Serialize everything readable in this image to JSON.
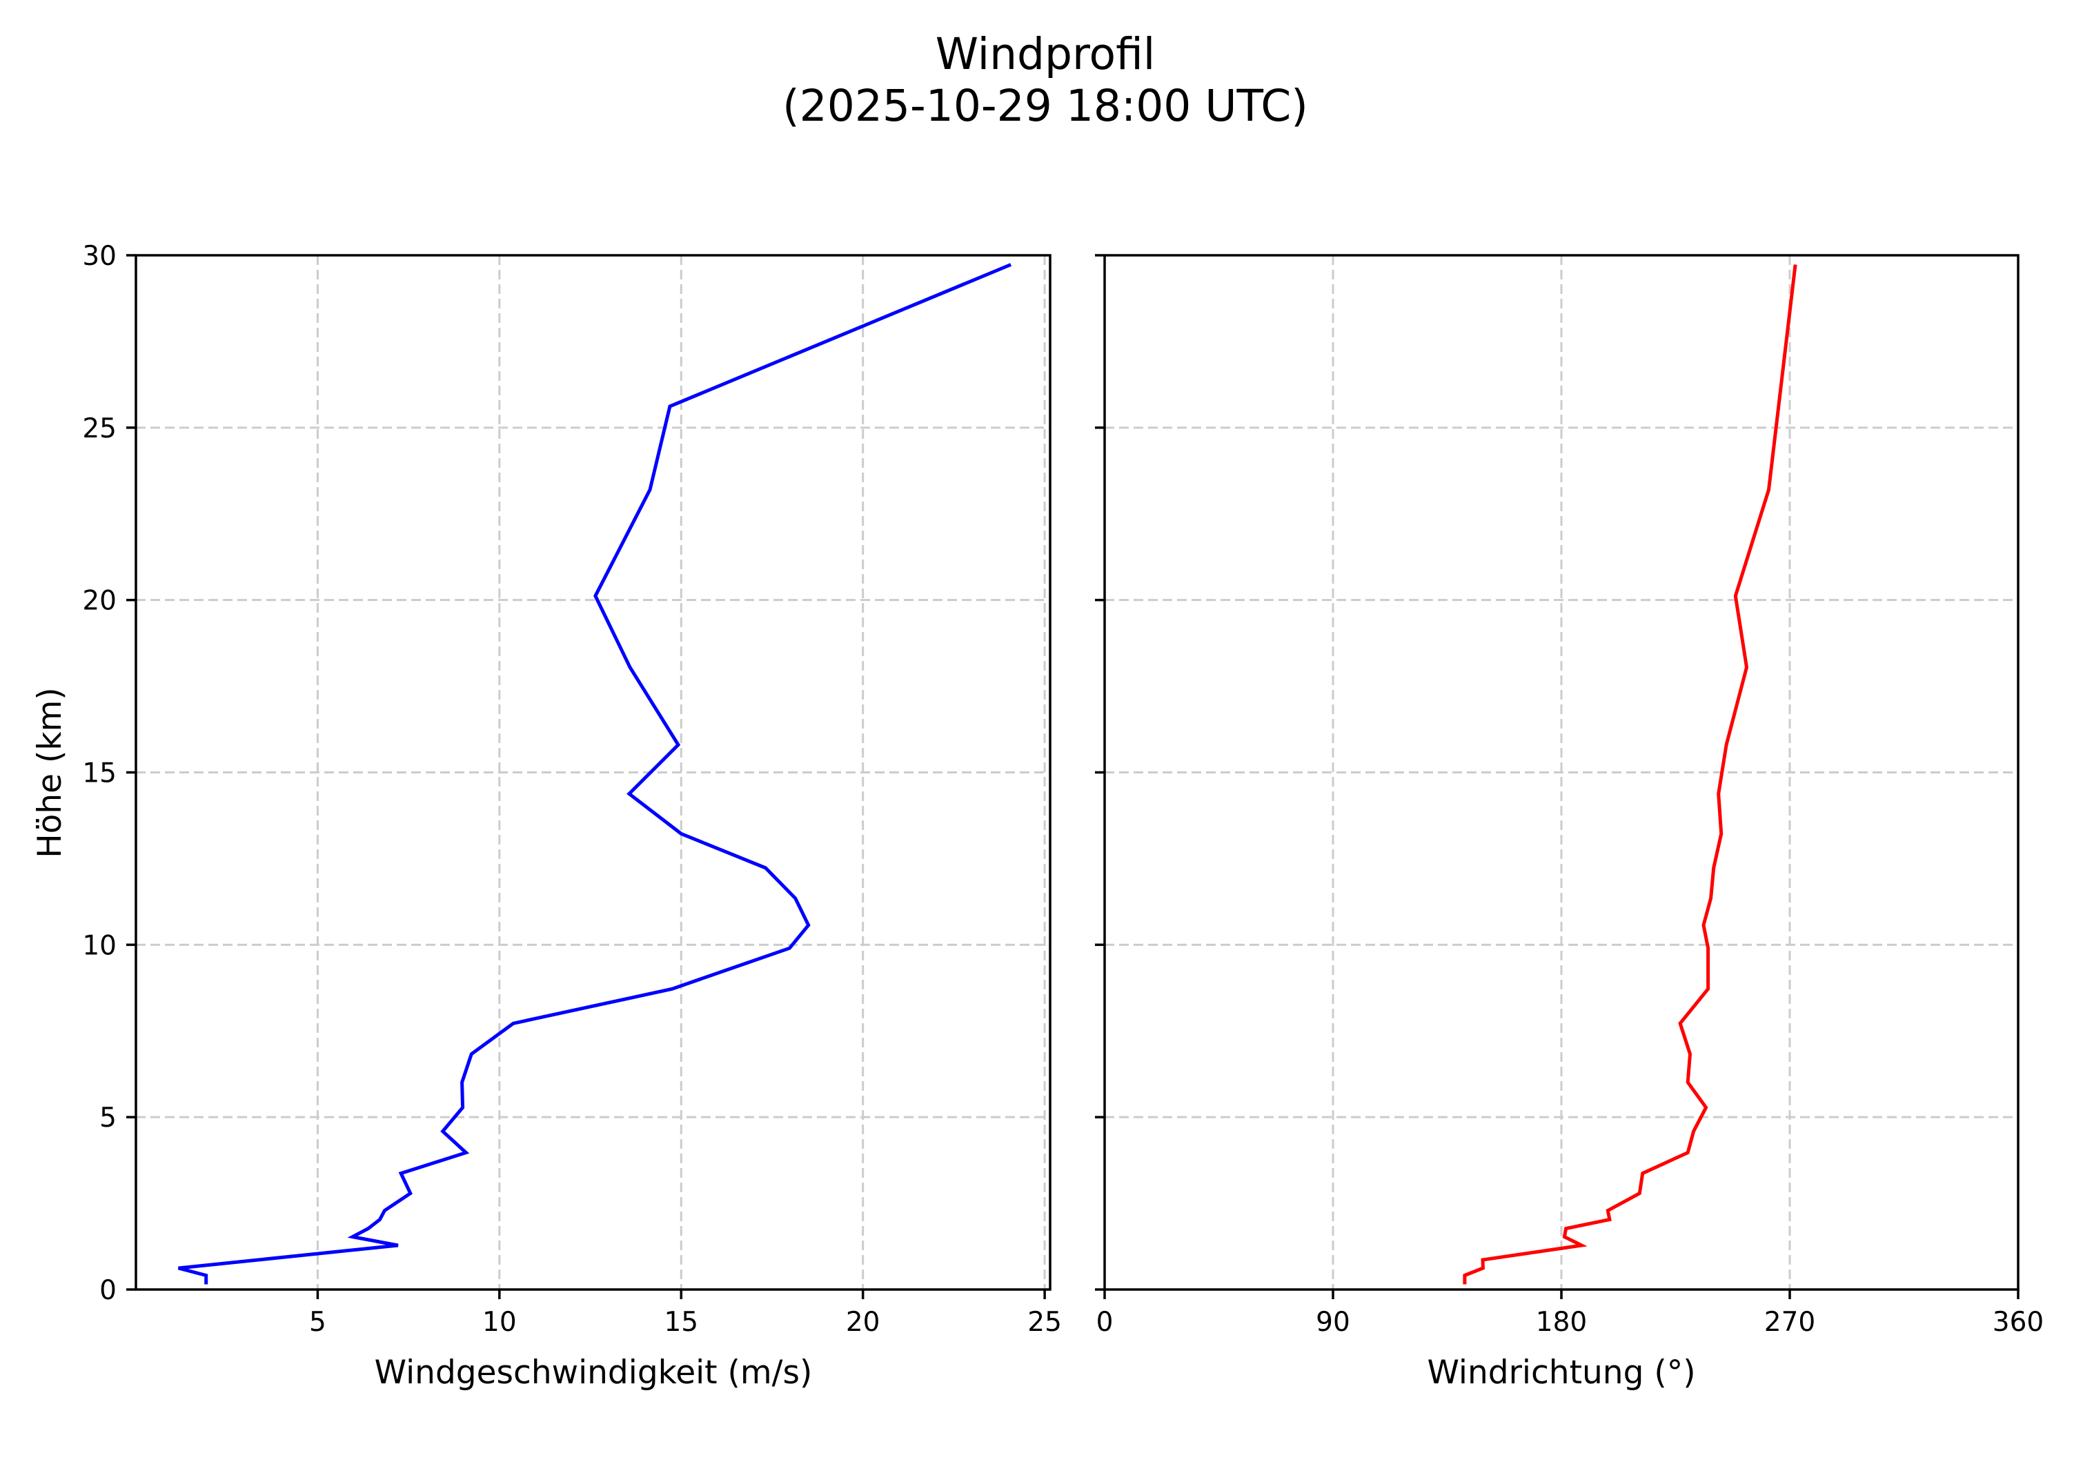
{
  "figure": {
    "title_line1": "Windprofil",
    "title_line2": "(2025-10-29 18:00 UTC)"
  },
  "left_panel": {
    "xlabel": "Windgeschwindigkeit (m/s)",
    "ylabel": "Höhe (km)",
    "xticks": [
      "5",
      "10",
      "15",
      "20",
      "25"
    ],
    "yticks": [
      "0",
      "5",
      "10",
      "15",
      "20",
      "25",
      "30"
    ],
    "line_color": "#0000ff"
  },
  "right_panel": {
    "xlabel": "Windrichtung (°)",
    "xticks": [
      "0",
      "90",
      "180",
      "270",
      "360"
    ],
    "line_color": "#ff0000"
  },
  "chart_data": [
    {
      "type": "line",
      "title": "Windprofil (2025-10-29 18:00 UTC)",
      "xlabel": "Windgeschwindigkeit (m/s)",
      "ylabel": "Höhe (km)",
      "xlim": [
        0,
        25.15
      ],
      "ylim": [
        0,
        30
      ],
      "xticks": [
        5,
        10,
        15,
        20,
        25
      ],
      "yticks": [
        0,
        5,
        10,
        15,
        20,
        25,
        30
      ],
      "grid": true,
      "series": [
        {
          "name": "Windgeschwindigkeit",
          "color": "#0000ff",
          "x": [
            1.93,
            1.93,
            1.17,
            3.37,
            7.21,
            5.96,
            6.39,
            6.71,
            6.84,
            7.55,
            7.29,
            9.08,
            8.44,
            8.99,
            8.97,
            9.23,
            10.38,
            14.75,
            17.98,
            18.5,
            18.14,
            17.32,
            15.0,
            13.57,
            14.92,
            13.59,
            12.64,
            14.14,
            14.69,
            24.07
          ],
          "y": [
            0.15,
            0.41,
            0.62,
            0.86,
            1.28,
            1.53,
            1.77,
            2.03,
            2.29,
            2.79,
            3.37,
            3.97,
            4.59,
            5.28,
            6.01,
            6.83,
            7.72,
            8.72,
            9.9,
            10.57,
            11.35,
            12.23,
            13.22,
            14.38,
            15.8,
            18.05,
            20.12,
            23.2,
            25.62,
            29.73
          ]
        }
      ]
    },
    {
      "type": "line",
      "title": "",
      "xlabel": "Windrichtung (°)",
      "ylabel": "",
      "xlim": [
        0,
        360
      ],
      "ylim": [
        0,
        30
      ],
      "xticks": [
        0,
        90,
        180,
        270,
        360
      ],
      "yticks": [
        0,
        5,
        10,
        15,
        20,
        25,
        30
      ],
      "grid": true,
      "sharey": true,
      "series": [
        {
          "name": "Windrichtung",
          "color": "#ff0000",
          "x": [
            141.9,
            141.9,
            149.1,
            149.0,
            188.0,
            181.2,
            181.8,
            199.0,
            198.3,
            210.8,
            212.0,
            229.8,
            232.1,
            237.0,
            229.8,
            230.7,
            226.8,
            237.8,
            237.8,
            236.0,
            238.9,
            240.0,
            243.0,
            241.9,
            245.0,
            253.0,
            248.6,
            261.7,
            265.6,
            272.2
          ],
          "y": [
            0.15,
            0.41,
            0.62,
            0.86,
            1.28,
            1.53,
            1.77,
            2.03,
            2.29,
            2.79,
            3.37,
            3.97,
            4.59,
            5.28,
            6.01,
            6.83,
            7.72,
            8.72,
            9.9,
            10.57,
            11.35,
            12.23,
            13.22,
            14.38,
            15.8,
            18.05,
            20.12,
            23.2,
            25.62,
            29.73
          ]
        }
      ]
    }
  ]
}
